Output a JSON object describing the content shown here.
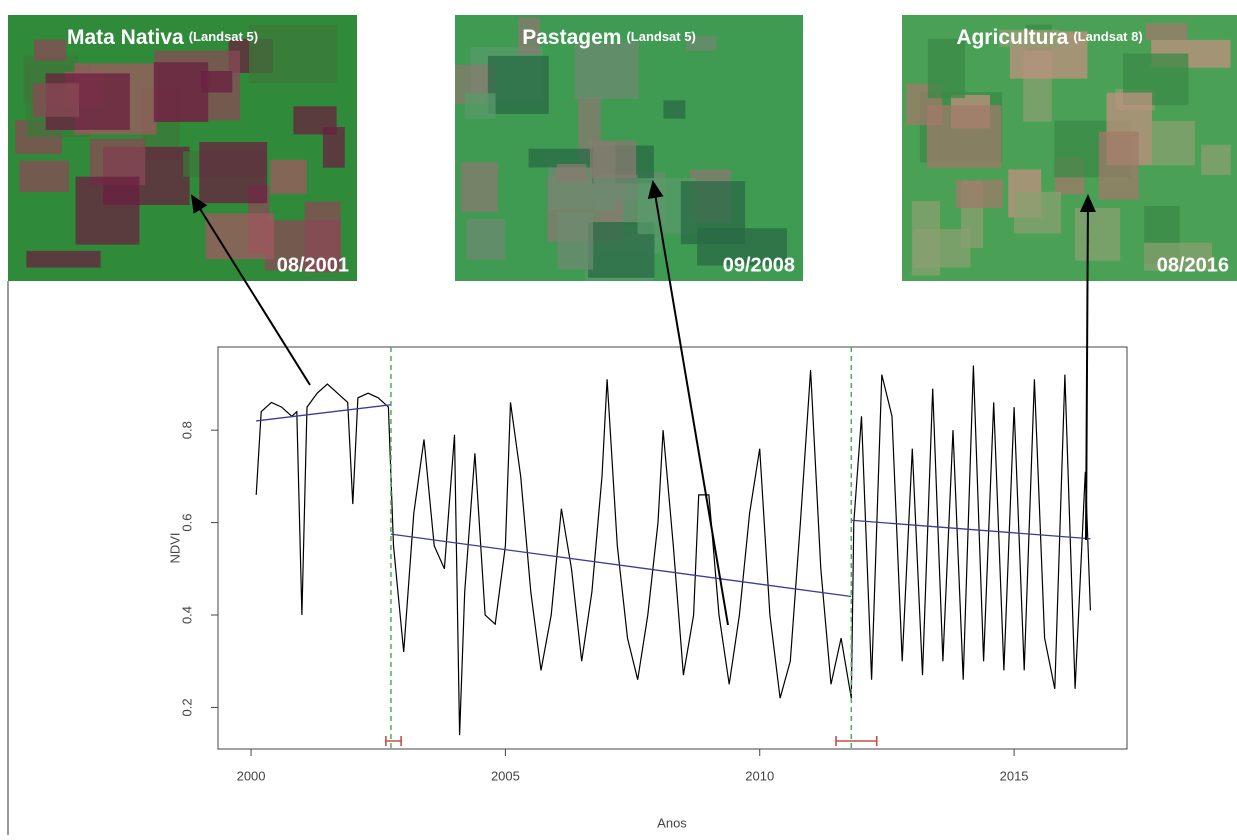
{
  "panels": [
    {
      "title": "Mata Nativa",
      "sensor": "(Landsat 5)",
      "date": "08/2001"
    },
    {
      "title": "Pastagem",
      "sensor": "(Landsat 5)",
      "date": "09/2008"
    },
    {
      "title": "Agricultura",
      "sensor": "(Landsat 8)",
      "date": "08/2016"
    }
  ],
  "chart_data": {
    "type": "line",
    "xlabel": "Anos",
    "ylabel": "NDVI",
    "xlim": [
      1999.35,
      2017.22
    ],
    "ylim": [
      0.11,
      0.98
    ],
    "xticks": [
      2000,
      2005,
      2010,
      2015
    ],
    "yticks": [
      0.2,
      0.4,
      0.6,
      0.8
    ],
    "color": "#000000",
    "x": [
      2000.1,
      2000.2,
      2000.4,
      2000.6,
      2000.8,
      2000.9,
      2001.0,
      2001.1,
      2001.3,
      2001.5,
      2001.7,
      2001.9,
      2002.0,
      2002.1,
      2002.3,
      2002.5,
      2002.7,
      2002.8,
      2003.0,
      2003.2,
      2003.4,
      2003.6,
      2003.8,
      2004.0,
      2004.1,
      2004.2,
      2004.4,
      2004.6,
      2004.8,
      2005.0,
      2005.1,
      2005.3,
      2005.5,
      2005.7,
      2005.9,
      2006.1,
      2006.3,
      2006.5,
      2006.7,
      2006.9,
      2007.0,
      2007.2,
      2007.4,
      2007.6,
      2007.8,
      2008.0,
      2008.1,
      2008.3,
      2008.5,
      2008.7,
      2008.8,
      2009.0,
      2009.2,
      2009.4,
      2009.6,
      2009.8,
      2010.0,
      2010.2,
      2010.4,
      2010.6,
      2010.8,
      2011.0,
      2011.2,
      2011.4,
      2011.6,
      2011.8,
      2011.85,
      2012.0,
      2012.2,
      2012.4,
      2012.6,
      2012.8,
      2013.0,
      2013.2,
      2013.4,
      2013.6,
      2013.8,
      2014.0,
      2014.2,
      2014.4,
      2014.6,
      2014.8,
      2015.0,
      2015.2,
      2015.4,
      2015.6,
      2015.8,
      2016.0,
      2016.2,
      2016.4,
      2016.5
    ],
    "values": [
      0.66,
      0.84,
      0.86,
      0.85,
      0.83,
      0.84,
      0.4,
      0.85,
      0.88,
      0.9,
      0.88,
      0.86,
      0.64,
      0.87,
      0.88,
      0.87,
      0.85,
      0.55,
      0.32,
      0.62,
      0.78,
      0.55,
      0.5,
      0.79,
      0.14,
      0.45,
      0.75,
      0.4,
      0.38,
      0.55,
      0.86,
      0.7,
      0.45,
      0.28,
      0.4,
      0.63,
      0.5,
      0.3,
      0.45,
      0.7,
      0.91,
      0.55,
      0.35,
      0.26,
      0.4,
      0.6,
      0.8,
      0.55,
      0.27,
      0.4,
      0.66,
      0.66,
      0.4,
      0.25,
      0.4,
      0.62,
      0.76,
      0.4,
      0.22,
      0.3,
      0.6,
      0.93,
      0.5,
      0.25,
      0.35,
      0.22,
      0.6,
      0.83,
      0.26,
      0.92,
      0.83,
      0.3,
      0.76,
      0.27,
      0.89,
      0.3,
      0.8,
      0.26,
      0.94,
      0.3,
      0.86,
      0.28,
      0.85,
      0.28,
      0.91,
      0.35,
      0.24,
      0.92,
      0.24,
      0.71,
      0.41
    ],
    "trend": [
      {
        "color": "#3b3b9a",
        "x": [
          2000.1,
          2002.75
        ],
        "values": [
          0.82,
          0.855
        ]
      },
      {
        "color": "#3b3b9a",
        "x": [
          2002.75,
          2011.8
        ],
        "values": [
          0.575,
          0.44
        ]
      },
      {
        "color": "#3b3b9a",
        "x": [
          2011.8,
          2016.5
        ],
        "values": [
          0.605,
          0.565
        ]
      }
    ],
    "breakpoints": [
      2002.75,
      2011.8
    ],
    "breakpoint_color": "#4caf50",
    "confidence_intervals": [
      [
        2002.65,
        2002.95
      ],
      [
        2011.5,
        2012.3
      ]
    ],
    "ci_color": "#c0504d"
  }
}
